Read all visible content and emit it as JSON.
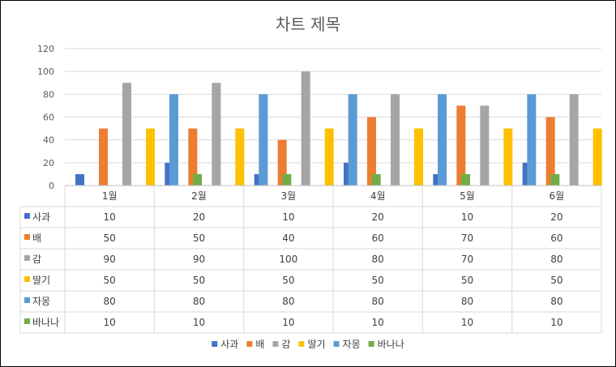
{
  "chart_data": {
    "type": "bar",
    "title": "차트 제목",
    "categories": [
      "1월",
      "2월",
      "3월",
      "4월",
      "5월",
      "6월"
    ],
    "ylim": [
      0,
      120
    ],
    "yticks": [
      0,
      20,
      40,
      60,
      80,
      100,
      120
    ],
    "grid": true,
    "legend_position": "bottom",
    "data_table": true,
    "series": [
      {
        "name": "사과",
        "values": [
          10,
          20,
          10,
          20,
          10,
          20
        ],
        "color": "#4472C4"
      },
      {
        "name": "배",
        "values": [
          50,
          50,
          40,
          60,
          70,
          60
        ],
        "color": "#ED7D31"
      },
      {
        "name": "감",
        "values": [
          90,
          90,
          100,
          80,
          70,
          80
        ],
        "color": "#A5A5A5"
      },
      {
        "name": "딸기",
        "values": [
          50,
          50,
          50,
          50,
          50,
          50
        ],
        "color": "#FFC000"
      },
      {
        "name": "자몽",
        "values": [
          80,
          80,
          80,
          80,
          80,
          80
        ],
        "color": "#5B9BD5"
      },
      {
        "name": "바나나",
        "values": [
          10,
          10,
          10,
          10,
          10,
          10
        ],
        "color": "#70AD47"
      }
    ]
  }
}
